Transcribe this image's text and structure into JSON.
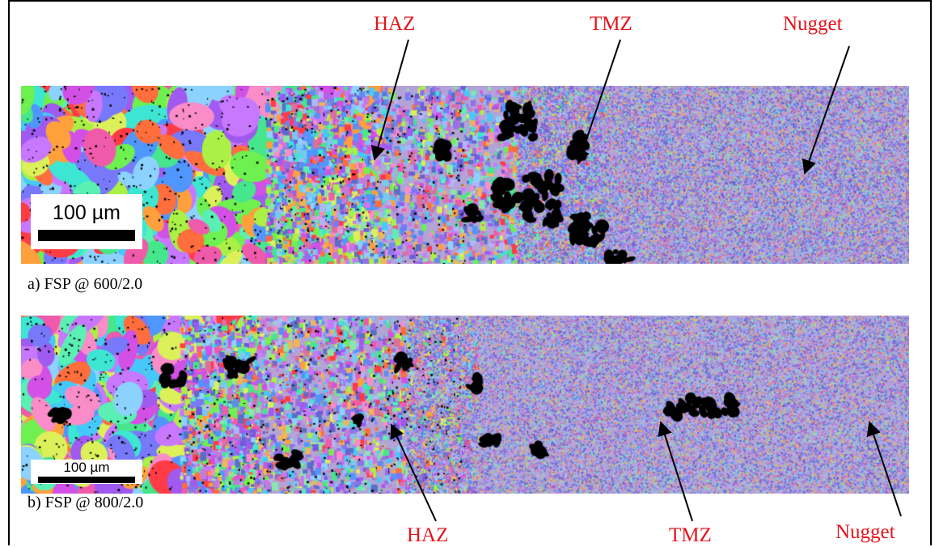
{
  "panels": [
    {
      "id": "a",
      "caption": "a) FSP @ 600/2.0",
      "scale_bar": "100 µm",
      "zones": {
        "haz": "HAZ",
        "tmz": "TMZ",
        "nugget": "Nugget"
      }
    },
    {
      "id": "b",
      "caption": "b) FSP @ 800/2.0",
      "scale_bar": "100 µm",
      "zones": {
        "haz": "HAZ",
        "tmz": "TMZ",
        "nugget": "Nugget"
      }
    }
  ],
  "colors": {
    "zone_label": "#e6141c",
    "arrow": "#000000",
    "border": "#000000",
    "background": "#ffffff",
    "unindexed": "#000000"
  },
  "icons": {
    "arrows": [
      "arrow-icon"
    ]
  }
}
